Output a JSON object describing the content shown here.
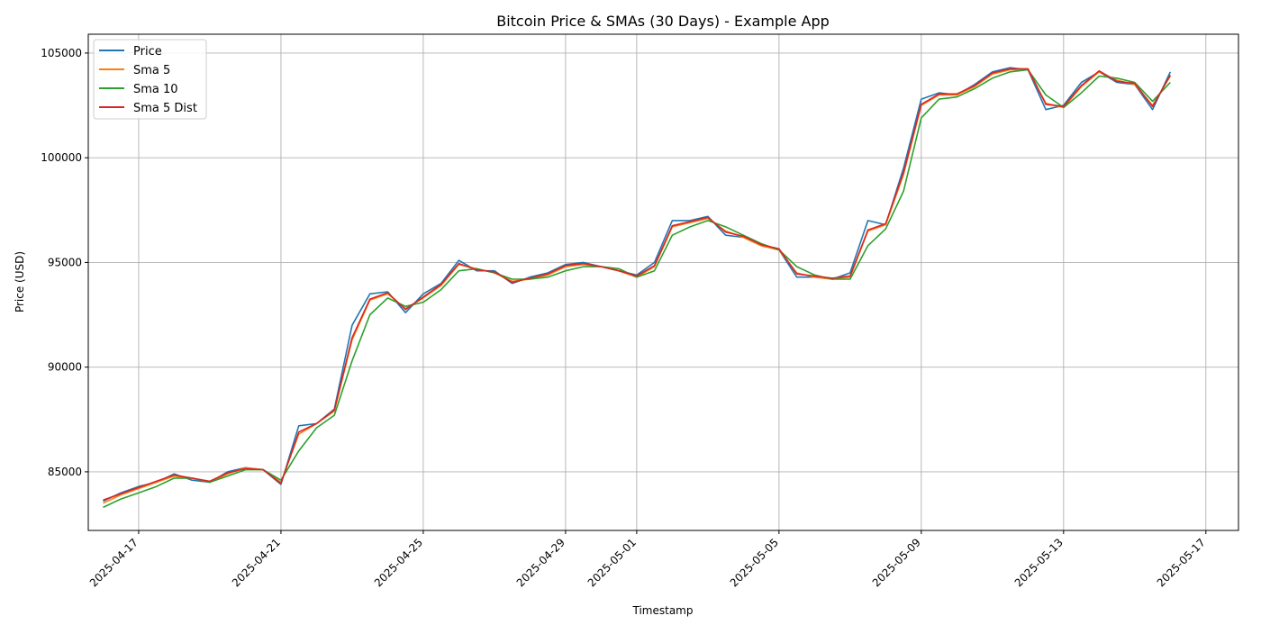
{
  "chart_data": {
    "type": "line",
    "title": "Bitcoin Price & SMAs (30 Days) - Example App",
    "xlabel": "Timestamp",
    "ylabel": "Price (USD)",
    "x_range": [
      "2025-04-15T14:00",
      "2025-05-17T22:00"
    ],
    "ylim": [
      82200,
      105900
    ],
    "y_ticks": [
      85000,
      90000,
      95000,
      100000,
      105000
    ],
    "x_ticks": [
      "2025-04-17",
      "2025-04-21",
      "2025-04-25",
      "2025-04-29",
      "2025-05-01",
      "2025-05-05",
      "2025-05-09",
      "2025-05-13",
      "2025-05-17"
    ],
    "grid": true,
    "legend_position": "upper-left",
    "x": [
      "2025-04-16T00:00",
      "2025-04-16T12:00",
      "2025-04-17T00:00",
      "2025-04-17T12:00",
      "2025-04-18T00:00",
      "2025-04-18T12:00",
      "2025-04-19T00:00",
      "2025-04-19T12:00",
      "2025-04-20T00:00",
      "2025-04-20T12:00",
      "2025-04-21T00:00",
      "2025-04-21T12:00",
      "2025-04-22T00:00",
      "2025-04-22T12:00",
      "2025-04-23T00:00",
      "2025-04-23T12:00",
      "2025-04-24T00:00",
      "2025-04-24T12:00",
      "2025-04-25T00:00",
      "2025-04-25T12:00",
      "2025-04-26T00:00",
      "2025-04-26T12:00",
      "2025-04-27T00:00",
      "2025-04-27T12:00",
      "2025-04-28T00:00",
      "2025-04-28T12:00",
      "2025-04-29T00:00",
      "2025-04-29T12:00",
      "2025-04-30T00:00",
      "2025-04-30T12:00",
      "2025-05-01T00:00",
      "2025-05-01T12:00",
      "2025-05-02T00:00",
      "2025-05-02T12:00",
      "2025-05-03T00:00",
      "2025-05-03T12:00",
      "2025-05-04T00:00",
      "2025-05-04T12:00",
      "2025-05-05T00:00",
      "2025-05-05T12:00",
      "2025-05-06T00:00",
      "2025-05-06T12:00",
      "2025-05-07T00:00",
      "2025-05-07T12:00",
      "2025-05-08T00:00",
      "2025-05-08T12:00",
      "2025-05-09T00:00",
      "2025-05-09T12:00",
      "2025-05-10T00:00",
      "2025-05-10T12:00",
      "2025-05-11T00:00",
      "2025-05-11T12:00",
      "2025-05-12T00:00",
      "2025-05-12T12:00",
      "2025-05-13T00:00",
      "2025-05-13T12:00",
      "2025-05-14T00:00",
      "2025-05-14T12:00",
      "2025-05-15T00:00",
      "2025-05-15T12:00",
      "2025-05-16T00:00"
    ],
    "series": [
      {
        "name": "Price",
        "color": "#1f77b4",
        "values": [
          83600,
          84000,
          84300,
          84500,
          84900,
          84600,
          84500,
          85000,
          85200,
          85100,
          84400,
          87200,
          87300,
          88000,
          92000,
          93500,
          93600,
          92600,
          93500,
          94000,
          95100,
          94600,
          94600,
          94000,
          94300,
          94500,
          94900,
          95000,
          94800,
          94600,
          94400,
          95000,
          97000,
          97000,
          97200,
          96300,
          96200,
          95800,
          95600,
          94300,
          94300,
          94200,
          94500,
          97000,
          96800,
          99500,
          102800,
          103100,
          103000,
          103500,
          104100,
          104300,
          104200,
          102300,
          102500,
          103600,
          104100,
          103600,
          103500,
          102300,
          104100
        ]
      },
      {
        "name": "Sma 5",
        "color": "#ff7f0e",
        "values": [
          83500,
          83900,
          84200,
          84500,
          84800,
          84700,
          84500,
          84900,
          85200,
          85100,
          84500,
          86800,
          87300,
          87900,
          91300,
          93200,
          93500,
          92800,
          93300,
          93900,
          94900,
          94700,
          94500,
          94100,
          94200,
          94400,
          94800,
          94900,
          94800,
          94600,
          94300,
          94800,
          96700,
          96900,
          97100,
          96500,
          96200,
          95800,
          95600,
          94500,
          94300,
          94200,
          94300,
          96500,
          96800,
          99200,
          102500,
          103000,
          103000,
          103400,
          104000,
          104200,
          104200,
          102600,
          102400,
          103400,
          104100,
          103700,
          103500,
          102500,
          103900
        ]
      },
      {
        "name": "Sma 10",
        "color": "#2ca02c",
        "values": [
          83300,
          83700,
          84000,
          84300,
          84700,
          84700,
          84500,
          84800,
          85100,
          85100,
          84600,
          86000,
          87100,
          87700,
          90300,
          92500,
          93300,
          92900,
          93100,
          93700,
          94600,
          94700,
          94500,
          94200,
          94200,
          94300,
          94600,
          94800,
          94800,
          94700,
          94300,
          94600,
          96300,
          96700,
          97000,
          96700,
          96300,
          95900,
          95600,
          94800,
          94400,
          94200,
          94200,
          95800,
          96600,
          98400,
          101900,
          102800,
          102900,
          103300,
          103800,
          104100,
          104200,
          103000,
          102400,
          103100,
          103900,
          103800,
          103600,
          102700,
          103600
        ]
      },
      {
        "name": "Sma 5 Dist",
        "color": "#d62728",
        "values": [
          83650,
          83950,
          84250,
          84550,
          84850,
          84700,
          84550,
          84950,
          85150,
          85100,
          84450,
          86900,
          87300,
          87950,
          91400,
          93250,
          93550,
          92750,
          93350,
          93950,
          94950,
          94650,
          94550,
          94050,
          94250,
          94450,
          94850,
          94950,
          94800,
          94600,
          94350,
          94850,
          96750,
          96950,
          97150,
          96450,
          96250,
          95850,
          95650,
          94450,
          94350,
          94250,
          94350,
          96550,
          96850,
          99300,
          102550,
          103050,
          103050,
          103450,
          104050,
          104250,
          104250,
          102550,
          102450,
          103450,
          104150,
          103650,
          103550,
          102450,
          103950
        ]
      }
    ]
  }
}
